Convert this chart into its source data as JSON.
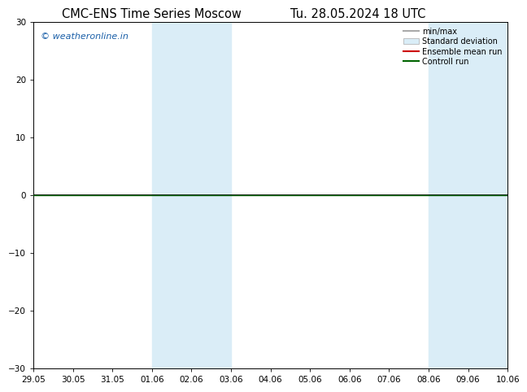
{
  "title_left": "CMC-ENS Time Series Moscow",
  "title_right": "Tu. 28.05.2024 18 UTC",
  "ylim": [
    -30,
    30
  ],
  "yticks": [
    -30,
    -20,
    -10,
    0,
    10,
    20,
    30
  ],
  "x_labels": [
    "29.05",
    "30.05",
    "31.05",
    "01.06",
    "02.06",
    "03.06",
    "04.06",
    "05.06",
    "06.06",
    "07.06",
    "08.06",
    "09.06",
    "10.06"
  ],
  "x_dates": [
    "2024-05-29",
    "2024-05-30",
    "2024-05-31",
    "2024-06-01",
    "2024-06-02",
    "2024-06-03",
    "2024-06-04",
    "2024-06-05",
    "2024-06-06",
    "2024-06-07",
    "2024-06-08",
    "2024-06-09",
    "2024-06-10"
  ],
  "shaded_bands": [
    [
      "2024-06-01",
      "2024-06-03"
    ],
    [
      "2024-06-08",
      "2024-06-10"
    ]
  ],
  "shade_color": "#daedf7",
  "hline_y": 0,
  "hline_color": "#000000",
  "green_line_y": 0,
  "green_line_color": "#006400",
  "watermark": "© weatheronline.in",
  "watermark_color": "#1a5fa8",
  "legend_items": [
    {
      "label": "min/max",
      "color": "#aaaaaa",
      "lw": 1.5,
      "style": "solid"
    },
    {
      "label": "Standard deviation",
      "color": "#cccccc",
      "lw": 6,
      "style": "solid"
    },
    {
      "label": "Ensemble mean run",
      "color": "#cc0000",
      "lw": 1.5,
      "style": "solid"
    },
    {
      "label": "Controll run",
      "color": "#006400",
      "lw": 1.5,
      "style": "solid"
    }
  ],
  "bg_color": "#ffffff",
  "plot_bg_color": "#ffffff",
  "border_color": "#000000",
  "title_fontsize": 10.5,
  "tick_fontsize": 7.5,
  "watermark_fontsize": 8,
  "legend_fontsize": 7
}
